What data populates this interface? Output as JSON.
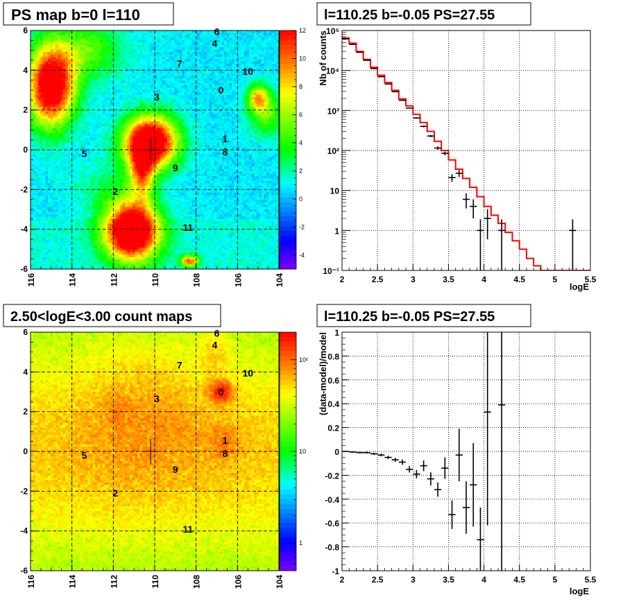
{
  "chart_data": [
    {
      "type": "heatmap",
      "title": "PS map b=0 l=110",
      "x_ticks": [
        "116",
        "114",
        "112",
        "110",
        "108",
        "106",
        "104"
      ],
      "y_ticks": [
        "6",
        "4",
        "2",
        "0",
        "-2",
        "-4",
        "-6"
      ],
      "xlim": [
        116,
        104
      ],
      "ylim": [
        -6,
        6
      ],
      "colorbar_ticks": [
        "12",
        "10",
        "8",
        "6",
        "4",
        "2",
        "0",
        "-2",
        "-4"
      ],
      "colorbar_range": [
        -5,
        12
      ],
      "sources": [
        {
          "label": "0",
          "l": 106.8,
          "b": 3.0
        },
        {
          "label": "1",
          "l": 106.6,
          "b": 0.55
        },
        {
          "label": "2",
          "l": 111.9,
          "b": -2.1
        },
        {
          "label": "3",
          "l": 109.9,
          "b": 2.65
        },
        {
          "label": "4",
          "l": 107.1,
          "b": 5.35
        },
        {
          "label": "5",
          "l": 113.4,
          "b": -0.2
        },
        {
          "label": "6",
          "l": 107.0,
          "b": 5.95
        },
        {
          "label": "7",
          "l": 108.8,
          "b": 4.35
        },
        {
          "label": "8",
          "l": 106.6,
          "b": -0.1
        },
        {
          "label": "9",
          "l": 109.0,
          "b": -0.9
        },
        {
          "label": "10",
          "l": 105.5,
          "b": 3.95
        },
        {
          "label": "11",
          "l": 108.4,
          "b": -3.9
        }
      ],
      "crosshair": {
        "l": 110.2,
        "b": 0.0
      },
      "hotspots": [
        {
          "l": 115.0,
          "b": 3.2,
          "level": 12
        },
        {
          "l": 110.2,
          "b": 0.2,
          "level": 12
        },
        {
          "l": 111.0,
          "b": -4.0,
          "level": 12
        },
        {
          "l": 105.0,
          "b": 2.6,
          "level": 9
        }
      ]
    },
    {
      "type": "step",
      "title": "l=110.25 b=-0.05 PS=27.55",
      "xlabel": "logE",
      "ylabel": "Nb of counts",
      "xlim": [
        2,
        5.5
      ],
      "ylim": [
        0.1,
        100000
      ],
      "yscale": "log",
      "x_ticks": [
        "2",
        "2.5",
        "3",
        "3.5",
        "4",
        "4.5",
        "5",
        "5.5"
      ],
      "y_ticks": [
        "10⁵",
        "10⁴",
        "10³",
        "10²",
        "10",
        "1",
        "10⁻¹"
      ],
      "model": {
        "bin_edges": [
          2.0,
          2.1,
          2.2,
          2.3,
          2.4,
          2.5,
          2.6,
          2.7,
          2.8,
          2.9,
          3.0,
          3.1,
          3.2,
          3.3,
          3.4,
          3.5,
          3.6,
          3.7,
          3.8,
          3.9,
          4.0,
          4.1,
          4.2,
          4.3,
          4.4,
          4.5,
          4.6,
          4.7,
          4.8,
          5.5
        ],
        "values": [
          65000,
          48000,
          30000,
          19000,
          12000,
          7600,
          5000,
          3200,
          1950,
          1300,
          800,
          500,
          300,
          170,
          100,
          58,
          34,
          20,
          12,
          7,
          4,
          2.4,
          1.5,
          0.9,
          0.55,
          0.34,
          0.2,
          0.13,
          0.1
        ]
      },
      "data": [
        {
          "x": 2.05,
          "y": 62000,
          "err": 250
        },
        {
          "x": 2.15,
          "y": 45000,
          "err": 210
        },
        {
          "x": 2.25,
          "y": 28500,
          "err": 170
        },
        {
          "x": 2.35,
          "y": 18000,
          "err": 135
        },
        {
          "x": 2.45,
          "y": 11200,
          "err": 105
        },
        {
          "x": 2.55,
          "y": 7000,
          "err": 84
        },
        {
          "x": 2.65,
          "y": 4600,
          "err": 68
        },
        {
          "x": 2.75,
          "y": 2950,
          "err": 54
        },
        {
          "x": 2.85,
          "y": 1800,
          "err": 42
        },
        {
          "x": 2.95,
          "y": 1150,
          "err": 34
        },
        {
          "x": 3.05,
          "y": 650,
          "err": 25
        },
        {
          "x": 3.15,
          "y": 400,
          "err": 20
        },
        {
          "x": 3.25,
          "y": 230,
          "err": 15
        },
        {
          "x": 3.35,
          "y": 115,
          "err": 11
        },
        {
          "x": 3.45,
          "y": 85,
          "err": 9
        },
        {
          "x": 3.55,
          "y": 21,
          "err": 4.6
        },
        {
          "x": 3.65,
          "y": 27,
          "err": 5.2
        },
        {
          "x": 3.75,
          "y": 6,
          "err": 2.45
        },
        {
          "x": 3.85,
          "y": 4,
          "err": 2
        },
        {
          "x": 3.95,
          "y": 1,
          "err": 0.9
        },
        {
          "x": 4.05,
          "y": 2,
          "err": 1.4
        },
        {
          "x": 4.25,
          "y": 1,
          "err": 0.9
        },
        {
          "x": 5.25,
          "y": 1,
          "err": 0.9
        }
      ],
      "model_color": "#ff0000"
    },
    {
      "type": "heatmap",
      "title": "2.50<logE<3.00 count maps",
      "x_ticks": [
        "116",
        "114",
        "112",
        "110",
        "108",
        "106",
        "104"
      ],
      "y_ticks": [
        "6",
        "4",
        "2",
        "0",
        "-2",
        "-4",
        "-6"
      ],
      "xlim": [
        116,
        104
      ],
      "ylim": [
        -6,
        6
      ],
      "colorbar_ticks": [
        "10²",
        "10",
        "1"
      ],
      "colorbar_log": [
        0.5,
        200
      ],
      "sources": [
        {
          "label": "0",
          "l": 106.8,
          "b": 3.0
        },
        {
          "label": "1",
          "l": 106.6,
          "b": 0.55
        },
        {
          "label": "2",
          "l": 111.9,
          "b": -2.1
        },
        {
          "label": "3",
          "l": 109.9,
          "b": 2.65
        },
        {
          "label": "4",
          "l": 107.1,
          "b": 5.35
        },
        {
          "label": "5",
          "l": 113.4,
          "b": -0.2
        },
        {
          "label": "6",
          "l": 107.0,
          "b": 5.95
        },
        {
          "label": "7",
          "l": 108.8,
          "b": 4.35
        },
        {
          "label": "8",
          "l": 106.6,
          "b": -0.1
        },
        {
          "label": "9",
          "l": 109.0,
          "b": -0.9
        },
        {
          "label": "10",
          "l": 105.5,
          "b": 3.95
        },
        {
          "label": "11",
          "l": 108.4,
          "b": -3.9
        }
      ],
      "crosshair": {
        "l": 110.2,
        "b": 0.0
      },
      "hotspots": [
        {
          "l": 106.8,
          "b": 3.0,
          "level": 140
        }
      ]
    },
    {
      "type": "scatter",
      "title": "l=110.25 b=-0.05 PS=27.55",
      "xlabel": "logE",
      "ylabel": "(data-model)/model",
      "xlim": [
        2,
        5.5
      ],
      "ylim": [
        -1,
        1
      ],
      "x_ticks": [
        "2",
        "2.5",
        "3",
        "3.5",
        "4",
        "4.5",
        "5",
        "5.5"
      ],
      "y_ticks": [
        "1",
        "0.8",
        "0.6",
        "0.4",
        "0.2",
        "0",
        "-0.2",
        "-0.4",
        "-0.6",
        "-0.8",
        "-1"
      ],
      "data": [
        {
          "x": 2.05,
          "y": 0.0,
          "err": 0.004
        },
        {
          "x": 2.15,
          "y": -0.005,
          "err": 0.005
        },
        {
          "x": 2.25,
          "y": -0.01,
          "err": 0.006
        },
        {
          "x": 2.35,
          "y": -0.01,
          "err": 0.007
        },
        {
          "x": 2.45,
          "y": -0.02,
          "err": 0.009
        },
        {
          "x": 2.55,
          "y": -0.03,
          "err": 0.011
        },
        {
          "x": 2.65,
          "y": -0.05,
          "err": 0.014
        },
        {
          "x": 2.75,
          "y": -0.07,
          "err": 0.017
        },
        {
          "x": 2.85,
          "y": -0.09,
          "err": 0.022
        },
        {
          "x": 2.95,
          "y": -0.15,
          "err": 0.027
        },
        {
          "x": 3.05,
          "y": -0.19,
          "err": 0.035
        },
        {
          "x": 3.15,
          "y": -0.12,
          "err": 0.045
        },
        {
          "x": 3.25,
          "y": -0.23,
          "err": 0.055
        },
        {
          "x": 3.35,
          "y": -0.32,
          "err": 0.06
        },
        {
          "x": 3.45,
          "y": -0.14,
          "err": 0.09
        },
        {
          "x": 3.55,
          "y": -0.53,
          "err": 0.12
        },
        {
          "x": 3.65,
          "y": -0.03,
          "err": 0.22
        },
        {
          "x": 3.75,
          "y": -0.47,
          "err": 0.22
        },
        {
          "x": 3.85,
          "y": -0.28,
          "err": 0.35
        },
        {
          "x": 3.95,
          "y": -0.74,
          "err": 0.27
        },
        {
          "x": 4.05,
          "y": 0.33,
          "err": 0.95
        },
        {
          "x": 4.25,
          "y": 0.39,
          "err": 1.4
        }
      ]
    }
  ]
}
